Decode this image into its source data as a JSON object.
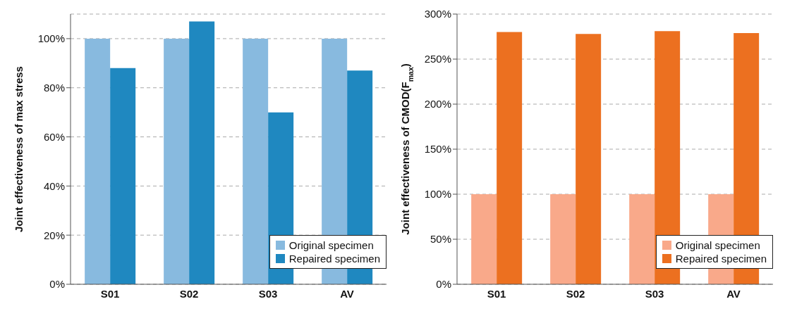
{
  "chart_data": [
    {
      "type": "bar",
      "ylabel": "Joint effectiveness of max stress",
      "categories": [
        "S01",
        "S02",
        "S03",
        "AV"
      ],
      "series": [
        {
          "name": "Original specimen",
          "color": "#88badf",
          "values": [
            100,
            100,
            100,
            100
          ]
        },
        {
          "name": "Repaired specimen",
          "color": "#1f88c0",
          "values": [
            88,
            107,
            70,
            87
          ]
        }
      ],
      "ylim": [
        0,
        110
      ],
      "yticks": [
        {
          "value": 0,
          "label": "0%"
        },
        {
          "value": 20,
          "label": "20%"
        },
        {
          "value": 40,
          "label": "40%"
        },
        {
          "value": 60,
          "label": "60%"
        },
        {
          "value": 80,
          "label": "80%"
        },
        {
          "value": 100,
          "label": "100%"
        }
      ],
      "grid": "y",
      "legend": "bottom right"
    },
    {
      "type": "bar",
      "ylabel": "Joint effectiveness of CMOD(F$_{max}$)",
      "categories": [
        "S01",
        "S02",
        "S03",
        "AV"
      ],
      "series": [
        {
          "name": "Original specimen",
          "color": "#f9a98a",
          "values": [
            100,
            100,
            100,
            100
          ]
        },
        {
          "name": "Repaired specimen",
          "color": "#ec7020",
          "values": [
            280,
            278,
            281,
            279
          ]
        }
      ],
      "ylim": [
        0,
        300
      ],
      "yticks": [
        {
          "value": 0,
          "label": "0%"
        },
        {
          "value": 50,
          "label": "50%"
        },
        {
          "value": 100,
          "label": "100%"
        },
        {
          "value": 150,
          "label": "150%"
        },
        {
          "value": 200,
          "label": "200%"
        },
        {
          "value": 250,
          "label": "250%"
        },
        {
          "value": 300,
          "label": "300%"
        }
      ],
      "grid": "y",
      "legend": "bottom right"
    }
  ]
}
